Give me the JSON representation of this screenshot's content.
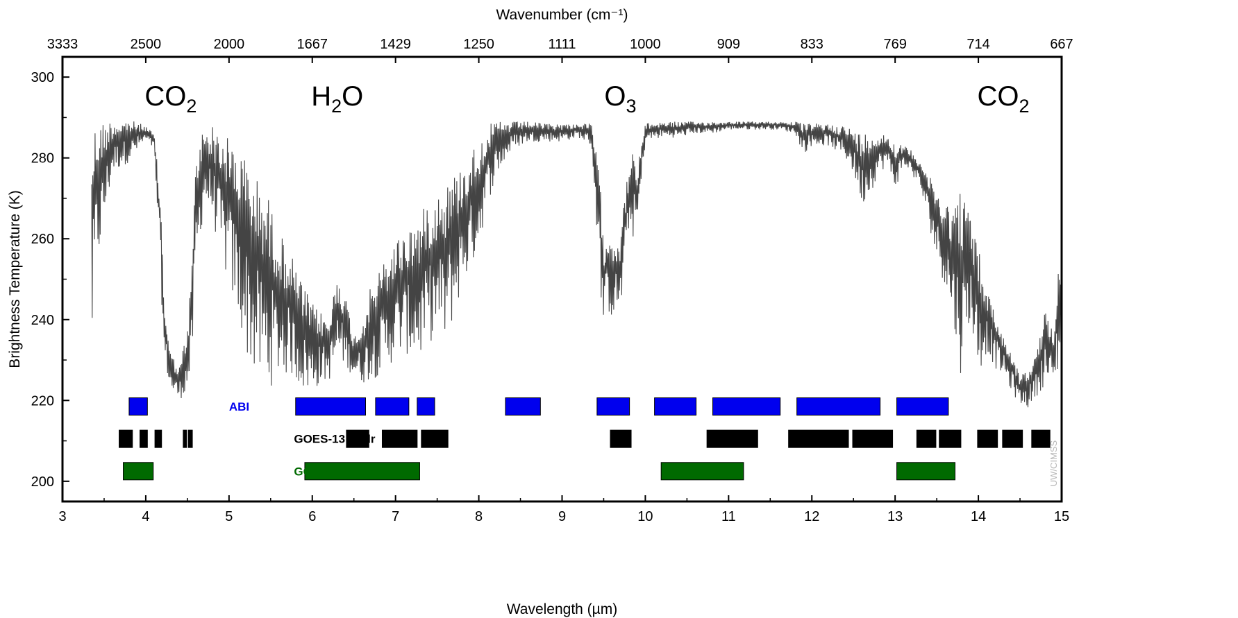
{
  "chart_data": {
    "type": "line",
    "title": "",
    "xlabel": "Wavelength (µm)",
    "x2label": "Wavenumber (cm⁻¹)",
    "ylabel": "Brightness Temperature (K)",
    "xlim": [
      3,
      15
    ],
    "ylim": [
      195,
      305
    ],
    "x_ticks": [
      3,
      4,
      5,
      6,
      7,
      8,
      9,
      10,
      11,
      12,
      13,
      14,
      15
    ],
    "y_ticks": [
      200,
      220,
      240,
      260,
      280,
      300
    ],
    "x2_ticks": [
      {
        "label": "3333",
        "wavelength": 3.0
      },
      {
        "label": "2500",
        "wavelength": 4.0
      },
      {
        "label": "2000",
        "wavelength": 5.0
      },
      {
        "label": "1667",
        "wavelength": 6.0
      },
      {
        "label": "1429",
        "wavelength": 7.0
      },
      {
        "label": "1250",
        "wavelength": 8.0
      },
      {
        "label": "1111",
        "wavelength": 9.0
      },
      {
        "label": "1000",
        "wavelength": 10.0
      },
      {
        "label": "909",
        "wavelength": 11.0
      },
      {
        "label": "833",
        "wavelength": 12.0
      },
      {
        "label": "769",
        "wavelength": 13.0
      },
      {
        "label": "714",
        "wavelength": 14.0
      },
      {
        "label": "667",
        "wavelength": 15.0
      }
    ],
    "grid": false,
    "series": [
      {
        "color": "#444444",
        "envelope": [
          [
            3.35,
            287,
            228
          ],
          [
            3.4,
            289,
            250
          ],
          [
            3.6,
            289.5,
            276
          ],
          [
            3.8,
            289.5,
            279
          ],
          [
            4.0,
            288,
            284
          ],
          [
            4.1,
            286,
            282
          ],
          [
            4.18,
            270,
            250
          ],
          [
            4.22,
            245,
            230
          ],
          [
            4.3,
            232,
            222
          ],
          [
            4.4,
            228,
            220
          ],
          [
            4.5,
            238,
            222
          ],
          [
            4.55,
            252,
            226
          ],
          [
            4.6,
            280,
            250
          ],
          [
            4.7,
            288.5,
            268
          ],
          [
            4.8,
            288,
            265
          ],
          [
            4.9,
            286,
            255
          ],
          [
            5.0,
            285,
            248
          ],
          [
            5.1,
            283,
            240
          ],
          [
            5.2,
            280,
            232
          ],
          [
            5.3,
            276,
            226
          ],
          [
            5.45,
            272,
            222
          ],
          [
            5.6,
            262,
            226
          ],
          [
            5.75,
            256,
            226
          ],
          [
            5.9,
            248,
            222
          ],
          [
            6.0,
            244,
            222
          ],
          [
            6.1,
            242,
            224
          ],
          [
            6.2,
            240,
            225
          ],
          [
            6.25,
            246,
            226
          ],
          [
            6.3,
            252,
            230
          ],
          [
            6.4,
            246,
            228
          ],
          [
            6.5,
            236,
            226
          ],
          [
            6.6,
            240,
            224
          ],
          [
            6.7,
            248,
            225
          ],
          [
            6.8,
            252,
            226
          ],
          [
            6.9,
            256,
            228
          ],
          [
            7.0,
            260,
            230
          ],
          [
            7.1,
            262,
            232
          ],
          [
            7.2,
            264,
            230
          ],
          [
            7.3,
            266,
            230
          ],
          [
            7.4,
            270,
            234
          ],
          [
            7.5,
            272,
            236
          ],
          [
            7.6,
            274,
            234
          ],
          [
            7.7,
            276,
            240
          ],
          [
            7.8,
            278,
            248
          ],
          [
            7.9,
            282,
            252
          ],
          [
            8.0,
            284,
            258
          ],
          [
            8.1,
            288,
            268
          ],
          [
            8.2,
            289,
            275
          ],
          [
            8.4,
            289,
            282
          ],
          [
            8.6,
            289,
            284
          ],
          [
            8.8,
            288.5,
            284
          ],
          [
            9.0,
            288.5,
            284
          ],
          [
            9.2,
            288.5,
            285
          ],
          [
            9.35,
            288.5,
            283
          ],
          [
            9.4,
            284,
            268
          ],
          [
            9.45,
            275,
            250
          ],
          [
            9.5,
            262,
            237
          ],
          [
            9.55,
            262,
            242
          ],
          [
            9.6,
            262,
            240
          ],
          [
            9.65,
            260,
            242
          ],
          [
            9.7,
            262,
            240
          ],
          [
            9.75,
            270,
            252
          ],
          [
            9.8,
            278,
            262
          ],
          [
            9.85,
            282,
            260
          ],
          [
            9.9,
            276,
            262
          ],
          [
            9.95,
            284,
            272
          ],
          [
            10.0,
            288.5,
            284
          ],
          [
            10.2,
            289,
            285
          ],
          [
            10.4,
            289,
            285
          ],
          [
            10.6,
            289,
            286
          ],
          [
            10.8,
            289,
            286
          ],
          [
            11.0,
            289,
            287
          ],
          [
            11.2,
            289,
            287
          ],
          [
            11.4,
            289,
            287
          ],
          [
            11.6,
            289,
            287
          ],
          [
            11.8,
            289,
            286
          ],
          [
            11.9,
            288.5,
            281
          ],
          [
            12.0,
            288.5,
            283
          ],
          [
            12.2,
            288.5,
            283
          ],
          [
            12.4,
            288,
            280
          ],
          [
            12.5,
            287,
            276
          ],
          [
            12.6,
            286,
            268
          ],
          [
            12.7,
            287,
            271
          ],
          [
            12.8,
            286,
            276
          ],
          [
            12.9,
            286,
            278
          ],
          [
            13.0,
            284,
            272
          ],
          [
            13.1,
            283,
            278
          ],
          [
            13.2,
            282,
            276
          ],
          [
            13.3,
            280,
            272
          ],
          [
            13.4,
            276,
            264
          ],
          [
            13.5,
            272,
            255
          ],
          [
            13.6,
            270,
            248
          ],
          [
            13.7,
            268,
            238
          ],
          [
            13.8,
            274,
            225
          ],
          [
            13.9,
            266,
            240
          ],
          [
            14.0,
            258,
            226
          ],
          [
            14.1,
            248,
            232
          ],
          [
            14.2,
            242,
            228
          ],
          [
            14.3,
            236,
            226
          ],
          [
            14.4,
            232,
            222
          ],
          [
            14.5,
            226,
            219
          ],
          [
            14.6,
            228,
            218
          ],
          [
            14.7,
            232,
            221
          ],
          [
            14.8,
            242,
            224
          ],
          [
            14.9,
            238,
            222
          ],
          [
            14.95,
            254,
            226
          ],
          [
            15.0,
            252,
            232
          ]
        ]
      }
    ],
    "annotations": [
      {
        "text": "CO",
        "sub": "2",
        "x": 4.3,
        "y": 293
      },
      {
        "text": "H",
        "sub": "2",
        "rest": "O",
        "x": 6.3,
        "y": 293
      },
      {
        "text": "O",
        "sub": "3",
        "x": 9.7,
        "y": 293
      },
      {
        "text": "CO",
        "sub": "2",
        "x": 14.3,
        "y": 293
      }
    ],
    "instruments": [
      {
        "name": "ABI",
        "color": "#0000ee",
        "label_x": 5.0,
        "y_center": 218.5,
        "bands": [
          [
            3.8,
            4.02
          ],
          [
            5.8,
            6.64
          ],
          [
            6.76,
            7.16
          ],
          [
            7.26,
            7.47
          ],
          [
            8.32,
            8.74
          ],
          [
            9.42,
            9.81
          ],
          [
            10.11,
            10.61
          ],
          [
            10.81,
            11.62
          ],
          [
            11.82,
            12.82
          ],
          [
            13.02,
            13.64
          ]
        ]
      },
      {
        "name": "GOES-13 Sndr",
        "color": "#000000",
        "label_x": 5.78,
        "y_center": 210.5,
        "bands": [
          [
            3.68,
            3.84
          ],
          [
            3.93,
            4.02
          ],
          [
            4.11,
            4.19
          ],
          [
            4.45,
            4.49
          ],
          [
            4.51,
            4.56
          ],
          [
            6.41,
            6.68
          ],
          [
            6.84,
            7.26
          ],
          [
            7.31,
            7.63
          ],
          [
            9.58,
            9.83
          ],
          [
            10.74,
            11.35
          ],
          [
            11.72,
            12.44
          ],
          [
            12.49,
            12.97
          ],
          [
            13.26,
            13.49
          ],
          [
            13.53,
            13.79
          ],
          [
            13.99,
            14.23
          ],
          [
            14.29,
            14.53
          ],
          [
            14.64,
            14.86
          ]
        ]
      },
      {
        "name": "GOES-13 Imgr",
        "color": "#006a00",
        "label_x": 5.78,
        "y_center": 202.5,
        "bands": [
          [
            3.73,
            4.09
          ],
          [
            5.91,
            7.29
          ],
          [
            10.19,
            11.18
          ],
          [
            13.02,
            13.72
          ]
        ]
      }
    ],
    "credit": "UW/CIMSS"
  }
}
